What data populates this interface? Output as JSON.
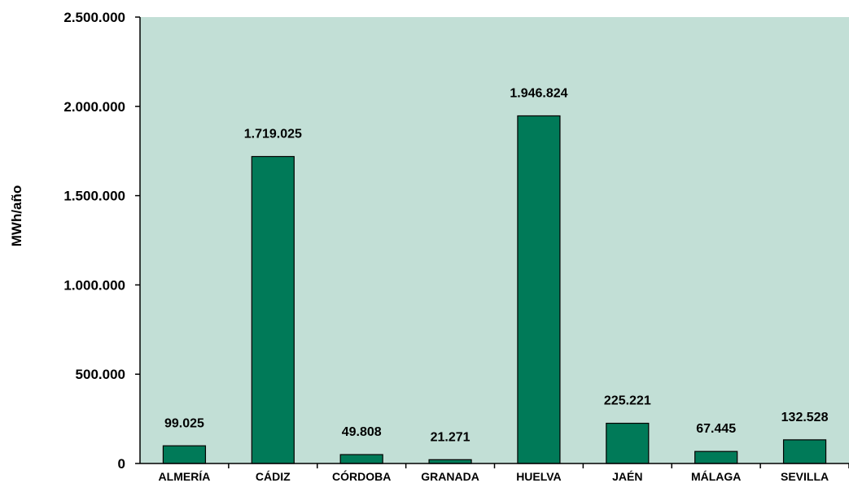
{
  "chart_data": {
    "type": "bar",
    "title": "",
    "xlabel": "",
    "ylabel": "MWh/año",
    "categories": [
      "ALMERÍA",
      "CÁDIZ",
      "CÓRDOBA",
      "GRANADA",
      "HUELVA",
      "JAÉN",
      "MÁLAGA",
      "SEVILLA"
    ],
    "values": [
      99025,
      1719025,
      49808,
      21271,
      1946824,
      225221,
      67445,
      132528
    ],
    "data_labels": [
      "99.025",
      "1.719.025",
      "49.808",
      "21.271",
      "1.946.824",
      "225.221",
      "67.445",
      "132.528"
    ],
    "ylim": [
      0,
      2500000
    ],
    "y_ticks": [
      0,
      500000,
      1000000,
      1500000,
      2000000,
      2500000
    ],
    "y_tick_labels": [
      "0",
      "500.000",
      "1.000.000",
      "1.500.000",
      "2.000.000",
      "2.500.000"
    ],
    "grid": false,
    "legend": "none",
    "colors": {
      "bar_fill": "#007A58",
      "bar_stroke": "#000000",
      "plot_background": "#C2DFD6"
    }
  }
}
